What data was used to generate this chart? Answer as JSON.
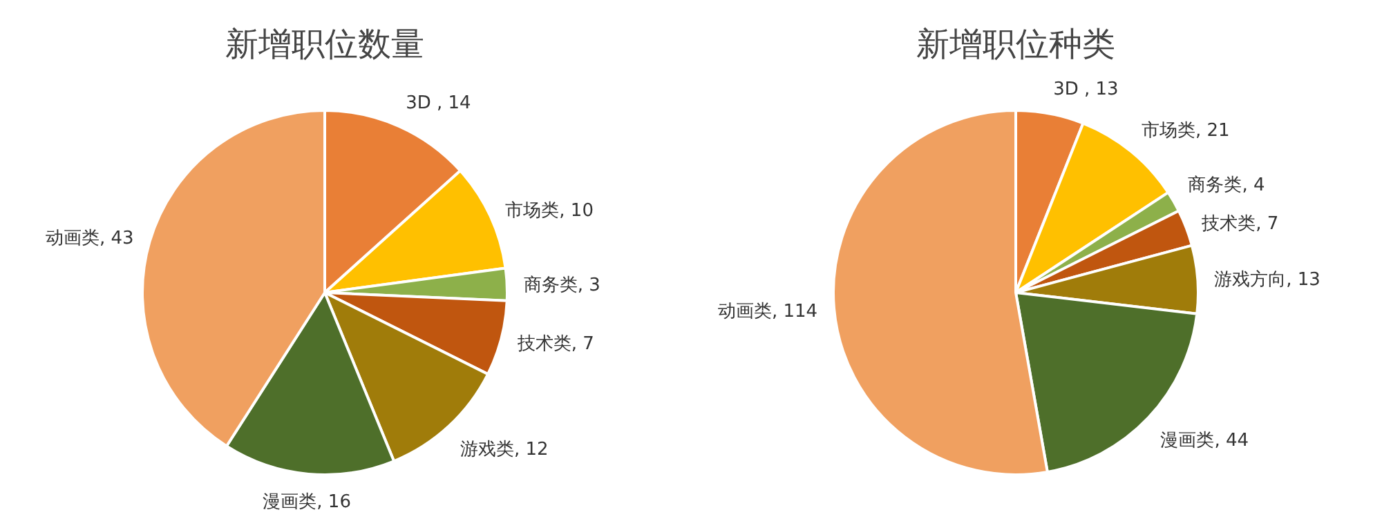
{
  "chart_data": [
    {
      "type": "pie",
      "title": "新增职位数量",
      "categories": [
        "3D",
        "市场类",
        "商务类",
        "技术类",
        "游戏类",
        "漫画类",
        "动画类"
      ],
      "values": [
        14,
        10,
        3,
        7,
        12,
        16,
        43
      ],
      "colors": [
        "#e97f36",
        "#ffc000",
        "#8db04a",
        "#c0560f",
        "#a07c0a",
        "#4e6f2a",
        "#f0a060"
      ],
      "value_labels": [
        " , 14",
        ", 10",
        ", 3",
        ", 7",
        ", 12",
        ", 16",
        ", 43"
      ]
    },
    {
      "type": "pie",
      "title": "新增职位种类",
      "categories": [
        "3D",
        "市场类",
        "商务类",
        "技术类",
        "游戏方向",
        "漫画类",
        "动画类"
      ],
      "values": [
        13,
        21,
        4,
        7,
        13,
        44,
        114
      ],
      "colors": [
        "#e97f36",
        "#ffc000",
        "#8db04a",
        "#c0560f",
        "#a07c0a",
        "#4e6f2a",
        "#f0a060"
      ],
      "value_labels": [
        " , 13",
        ", 21",
        ", 4",
        ", 7",
        ", 13",
        ", 44",
        ", 114"
      ]
    }
  ]
}
